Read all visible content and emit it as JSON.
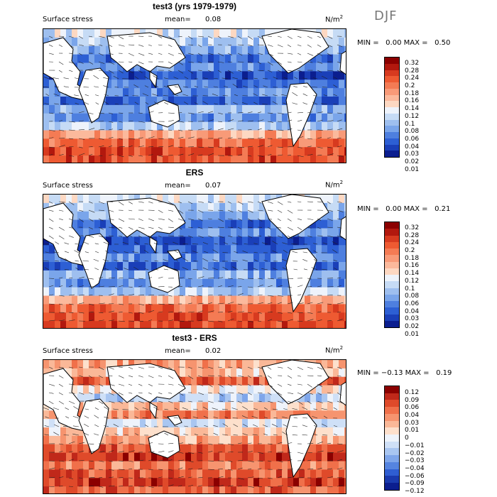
{
  "season": "DJF",
  "panels": [
    {
      "title": "test3 (yrs 1979-1979)",
      "field": "Surface stress",
      "mean_label": "mean=",
      "mean_value": "0.08",
      "units": "N/m",
      "units_sup": "2",
      "min_label": "MIN =",
      "min_value": "0.00",
      "max_label": "MAX =",
      "max_value": "0.50",
      "colorbar_levels": [
        "0.32",
        "0.28",
        "0.24",
        "0.2",
        "0.18",
        "0.16",
        "0.14",
        "0.12",
        "0.1",
        "0.08",
        "0.06",
        "0.04",
        "0.03",
        "0.02",
        "0.01"
      ],
      "colorbar_colors": [
        "#8b0000",
        "#b2180e",
        "#d73a1f",
        "#ee5a32",
        "#f47b54",
        "#f89a78",
        "#fbb99c",
        "#fdd8c2",
        "#eef3fb",
        "#c6dbf5",
        "#9ebfef",
        "#7aa5ea",
        "#4e7fdf",
        "#2d5fd4",
        "#1a3fb8",
        "#0b1e8f"
      ]
    },
    {
      "title": "ERS",
      "field": "Surface stress",
      "mean_label": "mean=",
      "mean_value": "0.07",
      "units": "N/m",
      "units_sup": "2",
      "min_label": "MIN =",
      "min_value": "0.00",
      "max_label": "MAX =",
      "max_value": "0.21",
      "colorbar_levels": [
        "0.32",
        "0.28",
        "0.24",
        "0.2",
        "0.18",
        "0.16",
        "0.14",
        "0.12",
        "0.1",
        "0.08",
        "0.06",
        "0.04",
        "0.03",
        "0.02",
        "0.01"
      ],
      "colorbar_colors": [
        "#8b0000",
        "#b2180e",
        "#d73a1f",
        "#ee5a32",
        "#f47b54",
        "#f89a78",
        "#fbb99c",
        "#fdd8c2",
        "#eef3fb",
        "#c6dbf5",
        "#9ebfef",
        "#7aa5ea",
        "#4e7fdf",
        "#2d5fd4",
        "#1a3fb8",
        "#0b1e8f"
      ]
    },
    {
      "title": "test3 - ERS",
      "field": "Surface stress",
      "mean_label": "mean=",
      "mean_value": "0.02",
      "units": "N/m",
      "units_sup": "2",
      "min_label": "MIN =",
      "min_value": "−0.13",
      "max_label": "MAX =",
      "max_value": "0.19",
      "colorbar_levels": [
        "0.12",
        "0.09",
        "0.06",
        "0.04",
        "0.03",
        "0.01",
        "0",
        "−0.01",
        "−0.02",
        "−0.03",
        "−0.04",
        "−0.06",
        "−0.09",
        "−0.12"
      ],
      "colorbar_colors": [
        "#8b0000",
        "#c0281a",
        "#df4a2a",
        "#f0704a",
        "#f6946f",
        "#fab898",
        "#fde0cc",
        "#eef3fb",
        "#cfe0f7",
        "#a9c6f1",
        "#7fa6ea",
        "#5584e0",
        "#2f5ed2",
        "#1a3aae",
        "#0b1e8f"
      ]
    }
  ]
}
